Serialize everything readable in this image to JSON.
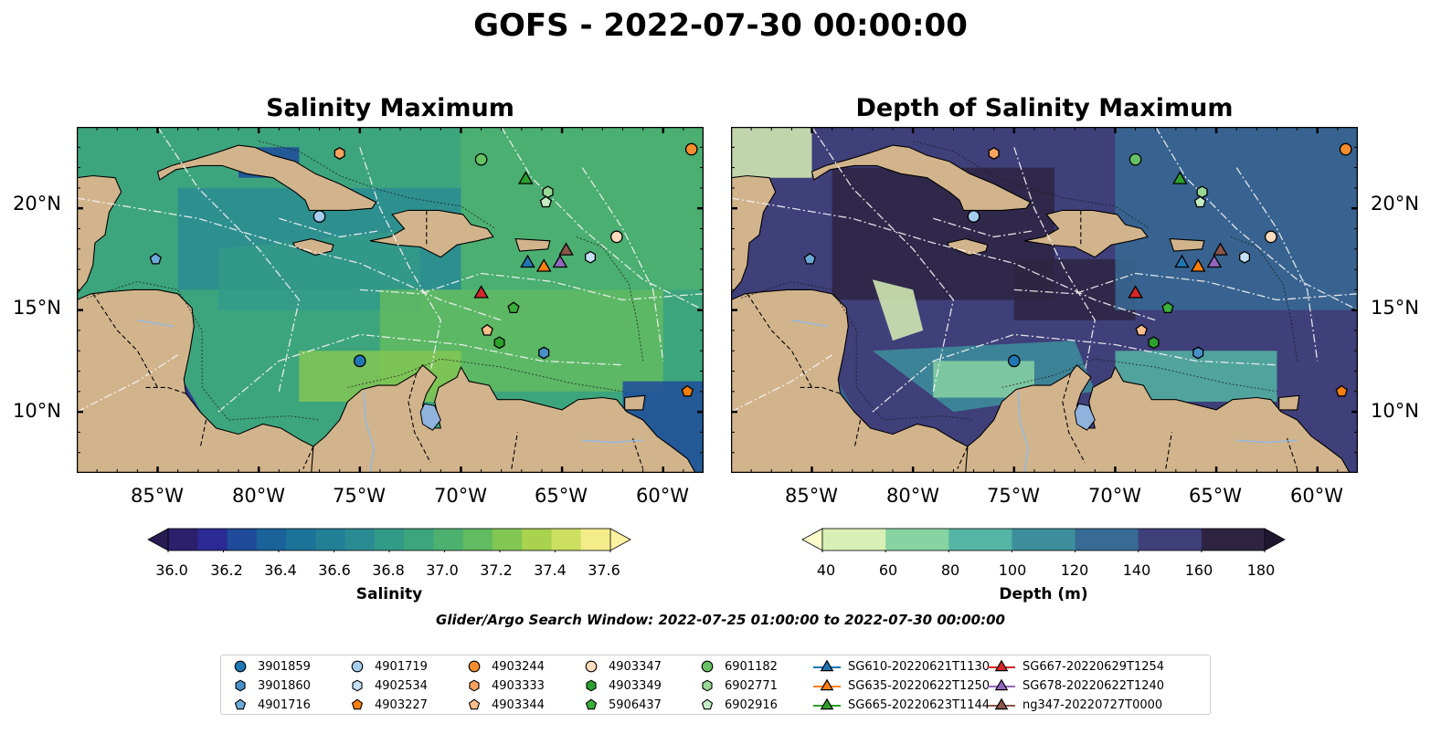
{
  "figure": {
    "suptitle": "GOFS - 2022-07-30 00:00:00",
    "search_window": "Glider/Argo Search Window: 2022-07-25 01:00:00 to 2022-07-30 00:00:00"
  },
  "panels": [
    {
      "title": "Salinity Maximum",
      "colorbar": {
        "label": "Salinity",
        "ticks": [
          "36.0",
          "36.2",
          "36.4",
          "36.6",
          "36.8",
          "37.0",
          "37.2",
          "37.4",
          "37.6"
        ],
        "colors": [
          "#2c1f6b",
          "#2b2a94",
          "#1f4b9a",
          "#19629a",
          "#1c7398",
          "#227f96",
          "#2b8b92",
          "#339a88",
          "#3da57d",
          "#4cb06f",
          "#61bb60",
          "#82c653",
          "#a9d24f",
          "#cddf61",
          "#f4ec8a"
        ],
        "under_color": "#281c52",
        "over_color": "#fbf1a0"
      }
    },
    {
      "title": "Depth of Salinity Maximum",
      "colorbar": {
        "label": "Depth (m)",
        "ticks": [
          "40",
          "60",
          "80",
          "100",
          "120",
          "140",
          "160",
          "180"
        ],
        "colors": [
          "#d8f0b6",
          "#87d4a2",
          "#55b5a4",
          "#3d8f9c",
          "#376a94",
          "#3f3f7a",
          "#2e2442"
        ],
        "under_color": "#fdfccd",
        "over_color": "#1f1630"
      }
    }
  ],
  "map": {
    "lon_range": [
      -89,
      -58
    ],
    "lat_range": [
      7,
      24
    ],
    "x_ticks": [
      "85°W",
      "80°W",
      "75°W",
      "70°W",
      "65°W",
      "60°W"
    ],
    "y_ticks": [
      "20°N",
      "15°N",
      "10°N"
    ],
    "land_color": "#d2b48c",
    "lake_color": "#8fb3dd"
  },
  "argo_floats": [
    {
      "id": "3901859",
      "lon": -75.0,
      "lat": 12.5,
      "marker": "circle",
      "color": "#1f77b4"
    },
    {
      "id": "3901860",
      "lon": -65.9,
      "lat": 12.9,
      "marker": "hexagon",
      "color": "#4a90c8"
    },
    {
      "id": "4901716",
      "lon": -85.1,
      "lat": 17.5,
      "marker": "pentagon",
      "color": "#6ba9d8"
    },
    {
      "id": "4901719",
      "lon": -77.0,
      "lat": 19.6,
      "marker": "circle",
      "color": "#a6cdee"
    },
    {
      "id": "4902534",
      "lon": -63.6,
      "lat": 17.6,
      "marker": "hexagon",
      "color": "#c5e0f5"
    },
    {
      "id": "4903227",
      "lon": -58.8,
      "lat": 11.0,
      "marker": "pentagon",
      "color": "#f57f0e"
    },
    {
      "id": "4903244",
      "lon": -58.6,
      "lat": 22.9,
      "marker": "circle",
      "color": "#f68d2e"
    },
    {
      "id": "4903333",
      "lon": -76.0,
      "lat": 22.7,
      "marker": "hexagon",
      "color": "#f9a35e"
    },
    {
      "id": "4903344",
      "lon": -68.7,
      "lat": 14.0,
      "marker": "pentagon",
      "color": "#fbbf8d"
    },
    {
      "id": "4903347",
      "lon": -62.3,
      "lat": 18.6,
      "marker": "circle",
      "color": "#fcdcbc"
    },
    {
      "id": "4903349",
      "lon": -68.1,
      "lat": 13.4,
      "marker": "hexagon",
      "color": "#2ca02c"
    },
    {
      "id": "5906437",
      "lon": -67.4,
      "lat": 15.1,
      "marker": "pentagon",
      "color": "#3aae3a"
    },
    {
      "id": "6901182",
      "lon": -69.0,
      "lat": 22.4,
      "marker": "circle",
      "color": "#66c165"
    },
    {
      "id": "6902771",
      "lon": -65.7,
      "lat": 20.8,
      "marker": "hexagon",
      "color": "#97d895"
    },
    {
      "id": "6902916",
      "lon": -65.8,
      "lat": 20.3,
      "marker": "pentagon",
      "color": "#c6ecc4"
    }
  ],
  "gliders": [
    {
      "id": "SG610-20220621T1130",
      "lon": -66.7,
      "lat": 17.3,
      "color": "#1f77b4"
    },
    {
      "id": "SG635-20220622T1250",
      "lon": -65.9,
      "lat": 17.1,
      "color": "#ff7f0e"
    },
    {
      "id": "SG665-20220623T1144",
      "lon": -66.8,
      "lat": 21.4,
      "color": "#2ca02c"
    },
    {
      "id": "SG667-20220629T1254",
      "lon": -69.0,
      "lat": 15.8,
      "color": "#d62728"
    },
    {
      "id": "SG678-20220622T1240",
      "lon": -65.1,
      "lat": 17.3,
      "color": "#9467bd"
    },
    {
      "id": "ng347-20220727T0000",
      "lon": -64.8,
      "lat": 17.9,
      "color": "#8c564b"
    }
  ]
}
